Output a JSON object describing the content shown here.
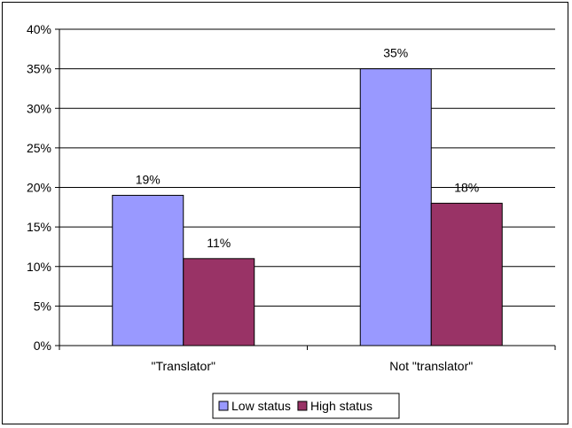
{
  "chart_data": {
    "type": "bar",
    "categories": [
      "\"Translator\"",
      "Not \"translator\""
    ],
    "series": [
      {
        "name": "Low status",
        "values": [
          19,
          35
        ],
        "color": "#9999FF"
      },
      {
        "name": "High status",
        "values": [
          11,
          18
        ],
        "color": "#993366"
      }
    ],
    "data_labels": [
      [
        "19%",
        "35%"
      ],
      [
        "11%",
        "18%"
      ]
    ],
    "y_ticks": [
      "0%",
      "5%",
      "10%",
      "15%",
      "20%",
      "25%",
      "30%",
      "35%",
      "40%"
    ],
    "ylim": [
      0,
      40
    ],
    "y_unit": "%",
    "grid": true,
    "legend_position": "bottom",
    "title": "",
    "xlabel": "",
    "ylabel": ""
  }
}
